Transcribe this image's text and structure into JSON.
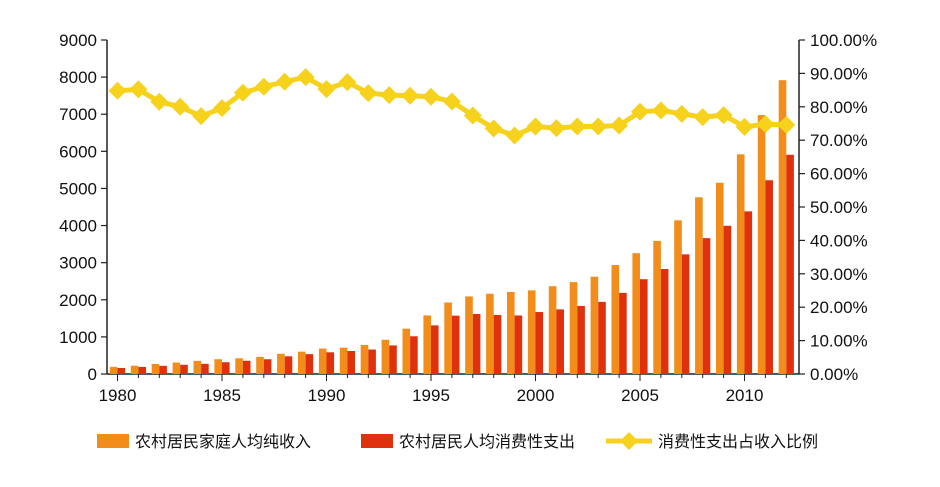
{
  "chart_data": {
    "type": "bar",
    "title": "",
    "xlabel": "",
    "ylabel": "",
    "x": [
      1980,
      1981,
      1982,
      1983,
      1984,
      1985,
      1986,
      1987,
      1988,
      1989,
      1990,
      1991,
      1992,
      1993,
      1994,
      1995,
      1996,
      1997,
      1998,
      1999,
      2000,
      2001,
      2002,
      2003,
      2004,
      2005,
      2006,
      2007,
      2008,
      2009,
      2010,
      2011,
      2012
    ],
    "x_ticks": [
      "1980",
      "1985",
      "1990",
      "1995",
      "2000",
      "2005",
      "2010"
    ],
    "y_left_ticks": [
      "0",
      "1000",
      "2000",
      "3000",
      "4000",
      "5000",
      "6000",
      "7000",
      "8000",
      "9000"
    ],
    "y_right_ticks": [
      "0.00%",
      "10.00%",
      "20.00%",
      "30.00%",
      "40.00%",
      "50.00%",
      "60.00%",
      "70.00%",
      "80.00%",
      "90.00%",
      "100.00%"
    ],
    "ylim_left": [
      0,
      9000
    ],
    "ylim_right": [
      0,
      100
    ],
    "grid": false,
    "legend_position": "bottom",
    "series": [
      {
        "name": "农村居民家庭人均纯收入",
        "type": "bar",
        "axis": "left",
        "color": "#f28c1b",
        "values": [
          191,
          223,
          270,
          310,
          355,
          398,
          424,
          463,
          545,
          602,
          686,
          709,
          784,
          922,
          1221,
          1578,
          1926,
          2090,
          2162,
          2210,
          2253,
          2366,
          2476,
          2622,
          2936,
          3255,
          3587,
          4140,
          4761,
          5153,
          5919,
          6977,
          7917
        ]
      },
      {
        "name": "农村居民人均消费性支出",
        "type": "bar",
        "axis": "left",
        "color": "#e0310f",
        "values": [
          162,
          190,
          220,
          248,
          274,
          317,
          357,
          398,
          477,
          535,
          585,
          620,
          659,
          770,
          1017,
          1310,
          1572,
          1617,
          1590,
          1577,
          1670,
          1741,
          1834,
          1943,
          2185,
          2555,
          2829,
          3224,
          3661,
          3993,
          4382,
          5221,
          5908
        ]
      },
      {
        "name": "消费性支出占收入比例",
        "type": "line",
        "axis": "right",
        "color": "#f7d21c",
        "values": [
          84.8,
          85.2,
          81.5,
          80.0,
          77.2,
          79.6,
          84.2,
          86.0,
          87.5,
          88.9,
          85.3,
          87.4,
          84.1,
          83.5,
          83.3,
          83.0,
          81.6,
          77.4,
          73.5,
          71.4,
          74.1,
          73.6,
          74.1,
          74.1,
          74.4,
          78.5,
          78.9,
          77.9,
          76.9,
          77.5,
          74.0,
          74.8,
          74.6
        ]
      }
    ]
  }
}
